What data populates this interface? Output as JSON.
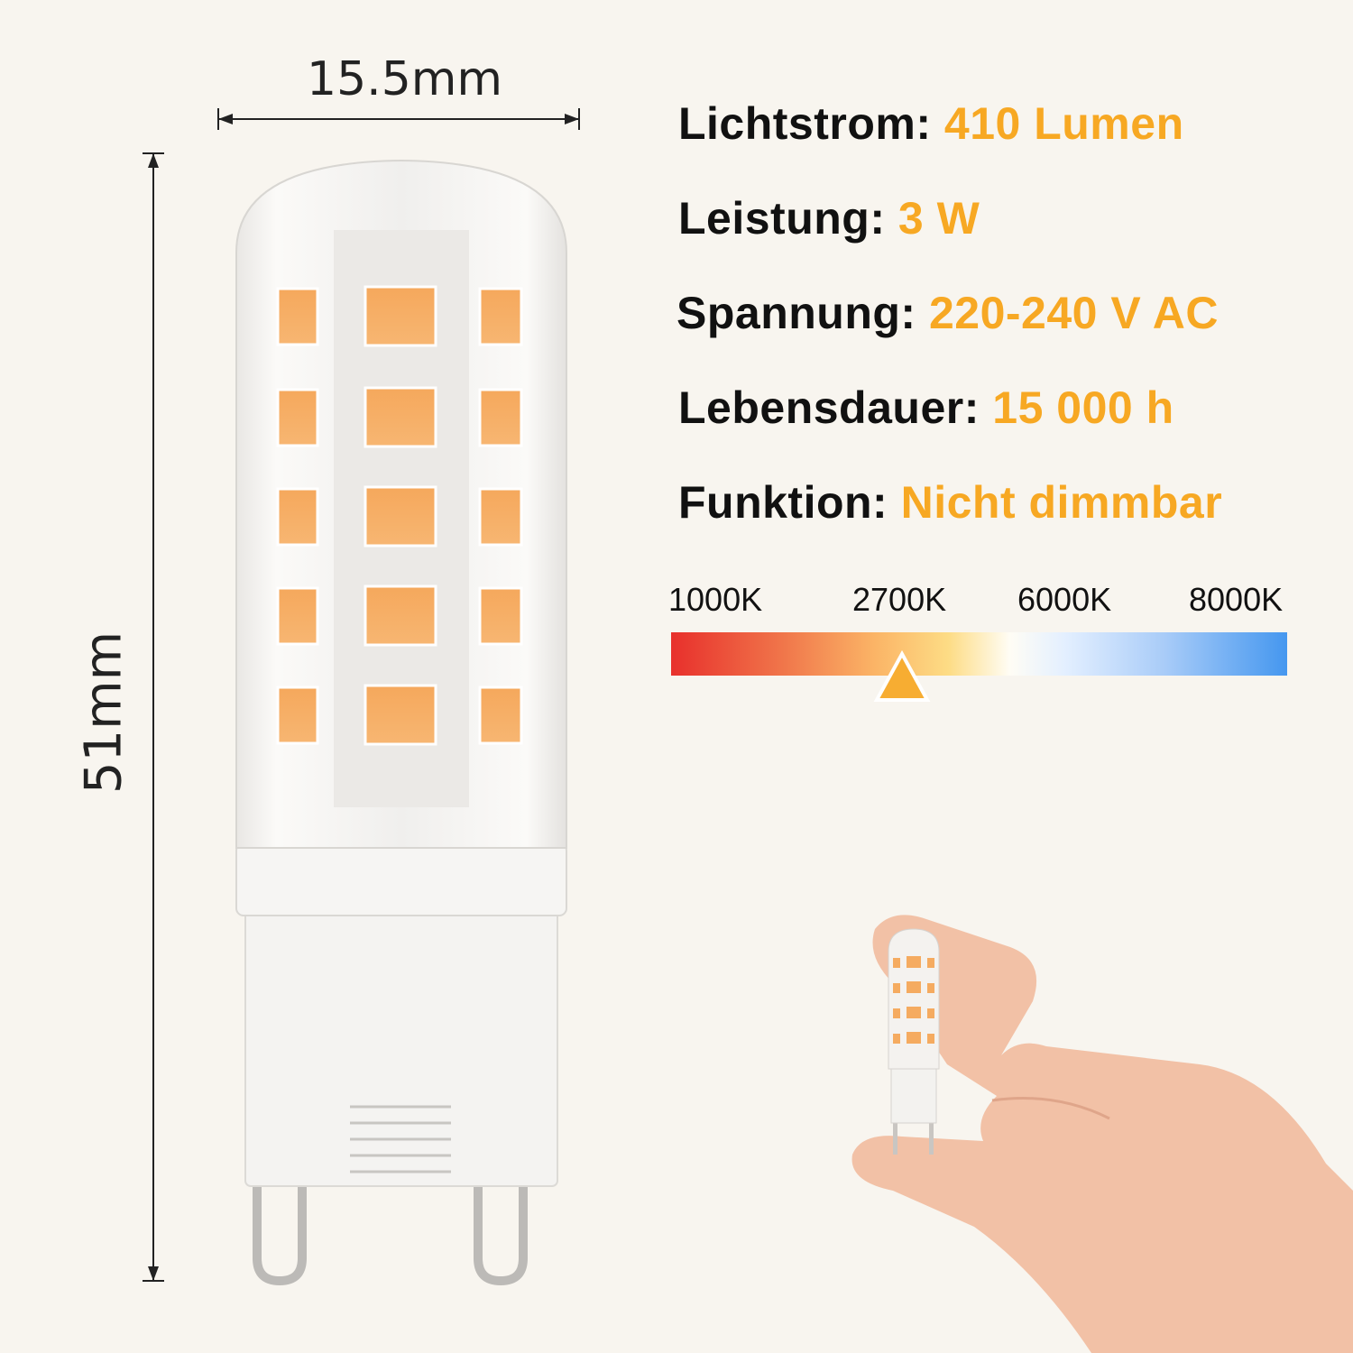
{
  "dimensions": {
    "width": "15.5mm",
    "height": "51mm"
  },
  "specs": [
    {
      "label": "Lichtstrom:",
      "value": "410 Lumen"
    },
    {
      "label": "Leistung:",
      "value": "3 W"
    },
    {
      "label": "Spannung:",
      "value": "220-240 V AC"
    },
    {
      "label": "Lebensdauer:",
      "value": "15 000 h"
    },
    {
      "label": "Funktion:",
      "value": "Nicht dimmbar"
    }
  ],
  "color_temperature": {
    "ticks": [
      "1000K",
      "2700K",
      "6000K",
      "8000K"
    ],
    "selected": "2700K"
  },
  "colors": {
    "accent": "#f7a823",
    "background": "#f8f5ef",
    "text": "#111111"
  }
}
